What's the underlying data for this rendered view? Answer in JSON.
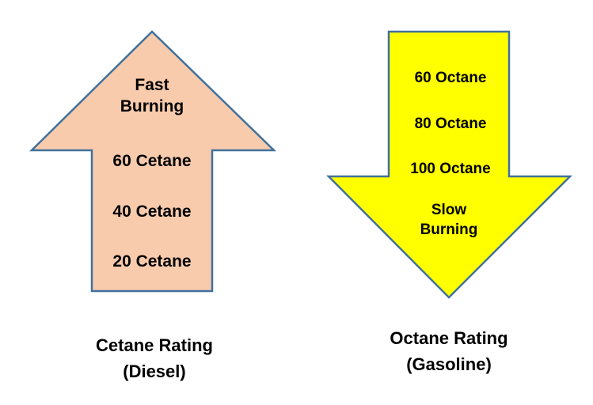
{
  "colors": {
    "cetane_fill": "#F8CBAD",
    "octane_fill": "#FFFF00",
    "outline": "#41719C"
  },
  "cetane": {
    "top_label_line1": "Fast",
    "top_label_line2": "Burning",
    "levels": [
      "60 Cetane",
      "40 Cetane",
      "20 Cetane"
    ],
    "caption_line1": "Cetane Rating",
    "caption_line2": "(Diesel)"
  },
  "octane": {
    "levels": [
      "60 Octane",
      "80 Octane",
      "100 Octane"
    ],
    "bottom_label_line1": "Slow",
    "bottom_label_line2": "Burning",
    "caption_line1": "Octane Rating",
    "caption_line2": "(Gasoline)"
  }
}
